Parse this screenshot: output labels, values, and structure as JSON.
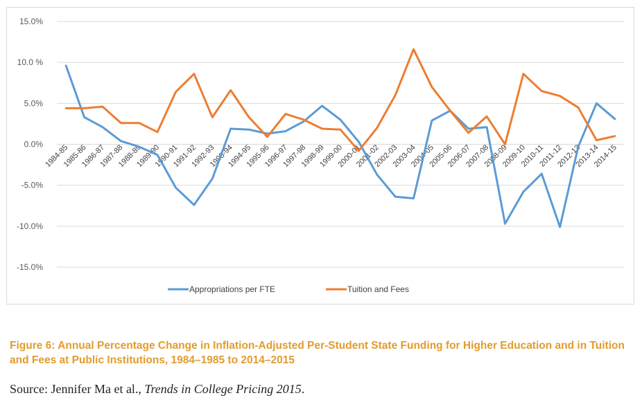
{
  "chart_data": {
    "type": "line",
    "categories": [
      "1984-85",
      "1985-86",
      "1986-87",
      "1987-88",
      "1988-89",
      "1989-90",
      "1990-91",
      "1991-92",
      "1992-93",
      "1993-94",
      "1994-95",
      "1995-96",
      "1996-97",
      "1997-98",
      "1998-99",
      "1999-00",
      "2000-01",
      "2001-02",
      "2002-03",
      "2003-04",
      "2004-05",
      "2005-06",
      "2006-07",
      "2007-08",
      "2008-09",
      "2009-10",
      "2010-11",
      "2011-12",
      "2012-13",
      "2013-14",
      "2014-15"
    ],
    "series": [
      {
        "name": "Appropriations per FTE",
        "color": "#5b9bd5",
        "values": [
          9.6,
          3.3,
          2.1,
          0.4,
          -0.3,
          -1.3,
          -5.3,
          -7.4,
          -4.2,
          1.9,
          1.8,
          1.3,
          1.6,
          2.8,
          4.7,
          3.0,
          0.3,
          -3.7,
          -6.4,
          -6.6,
          2.9,
          4.1,
          1.9,
          2.1,
          -9.7,
          -5.8,
          -3.6,
          -10.1,
          -0.3,
          5.0,
          3.1
        ]
      },
      {
        "name": "Tuition and Fees",
        "color": "#ed7d31",
        "values": [
          4.4,
          4.4,
          4.6,
          2.6,
          2.6,
          1.5,
          6.4,
          8.6,
          3.3,
          6.6,
          3.3,
          0.9,
          3.7,
          3.0,
          1.9,
          1.8,
          -0.8,
          2.0,
          6.0,
          11.6,
          7.0,
          4.1,
          1.4,
          3.4,
          0.0,
          8.6,
          6.5,
          5.9,
          4.5,
          0.5,
          1.0
        ]
      }
    ],
    "y_ticks": [
      "15.0%",
      "10.0 %",
      "5.0%",
      "0.0%",
      "-5.0%",
      "-10.0%",
      "-15.0%"
    ],
    "y_tick_values": [
      15,
      10,
      5,
      0,
      -5,
      -10,
      -15
    ],
    "ylim": [
      -15,
      15
    ],
    "grid": true,
    "legend_position": "bottom"
  },
  "caption": "Figure 6: Annual Percentage Change in Inflation-Adjusted Per-Student State Funding for Higher Education and in Tuition and Fees at Public Institutions, 1984–1985 to 2014–2015",
  "source": {
    "prefix": "Source: Jennifer Ma et al., ",
    "title": "Trends in College Pricing 2015",
    "suffix": "."
  }
}
